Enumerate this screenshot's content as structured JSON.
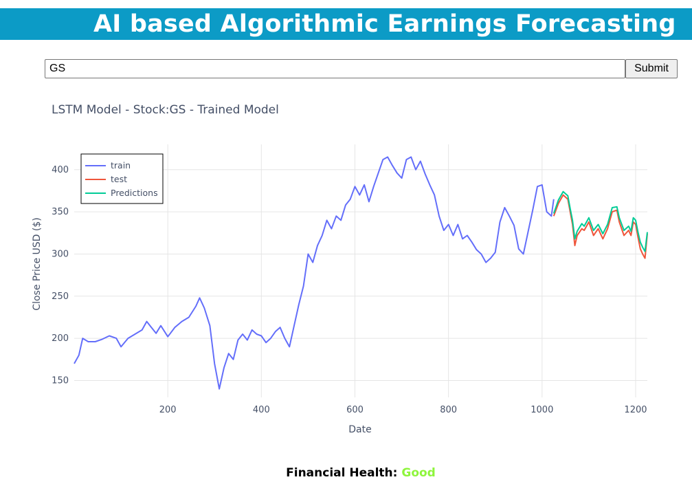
{
  "header": {
    "title": "AI based Algorithmic Earnings Forecasting"
  },
  "search": {
    "value": "GS",
    "submit_label": "Submit"
  },
  "footer": {
    "label": "Financial Health:",
    "value": "Good",
    "value_color": "#8ef53c"
  },
  "chart_data": {
    "type": "line",
    "title": "LSTM Model - Stock:GS - Trained Model",
    "xlabel": "Date",
    "ylabel": "Close Price USD ($)",
    "xlim": [
      0,
      1225
    ],
    "ylim": [
      130,
      430
    ],
    "xticks": [
      200,
      400,
      600,
      800,
      1000,
      1200
    ],
    "yticks": [
      150,
      200,
      250,
      300,
      350,
      400
    ],
    "grid": true,
    "legend_position": "top-left",
    "series": [
      {
        "name": "train",
        "color": "#636efa",
        "points": [
          [
            0,
            170
          ],
          [
            10,
            180
          ],
          [
            18,
            200
          ],
          [
            30,
            196
          ],
          [
            45,
            196
          ],
          [
            60,
            199
          ],
          [
            75,
            203
          ],
          [
            90,
            200
          ],
          [
            100,
            190
          ],
          [
            115,
            200
          ],
          [
            130,
            205
          ],
          [
            145,
            210
          ],
          [
            155,
            220
          ],
          [
            165,
            213
          ],
          [
            175,
            206
          ],
          [
            185,
            215
          ],
          [
            200,
            202
          ],
          [
            215,
            213
          ],
          [
            230,
            220
          ],
          [
            245,
            225
          ],
          [
            260,
            238
          ],
          [
            268,
            248
          ],
          [
            278,
            236
          ],
          [
            290,
            215
          ],
          [
            300,
            170
          ],
          [
            310,
            140
          ],
          [
            320,
            165
          ],
          [
            330,
            182
          ],
          [
            340,
            175
          ],
          [
            350,
            198
          ],
          [
            360,
            205
          ],
          [
            370,
            198
          ],
          [
            380,
            210
          ],
          [
            390,
            205
          ],
          [
            400,
            203
          ],
          [
            410,
            195
          ],
          [
            420,
            200
          ],
          [
            430,
            208
          ],
          [
            440,
            213
          ],
          [
            450,
            200
          ],
          [
            460,
            190
          ],
          [
            470,
            215
          ],
          [
            480,
            240
          ],
          [
            490,
            262
          ],
          [
            500,
            300
          ],
          [
            510,
            290
          ],
          [
            520,
            310
          ],
          [
            530,
            322
          ],
          [
            540,
            340
          ],
          [
            550,
            330
          ],
          [
            560,
            345
          ],
          [
            570,
            340
          ],
          [
            580,
            358
          ],
          [
            590,
            365
          ],
          [
            600,
            380
          ],
          [
            610,
            370
          ],
          [
            620,
            382
          ],
          [
            630,
            362
          ],
          [
            640,
            380
          ],
          [
            650,
            396
          ],
          [
            660,
            412
          ],
          [
            670,
            415
          ],
          [
            680,
            405
          ],
          [
            690,
            396
          ],
          [
            700,
            390
          ],
          [
            710,
            412
          ],
          [
            720,
            415
          ],
          [
            730,
            400
          ],
          [
            740,
            410
          ],
          [
            750,
            395
          ],
          [
            760,
            382
          ],
          [
            770,
            370
          ],
          [
            780,
            345
          ],
          [
            790,
            328
          ],
          [
            800,
            335
          ],
          [
            810,
            322
          ],
          [
            820,
            335
          ],
          [
            830,
            318
          ],
          [
            840,
            322
          ],
          [
            850,
            314
          ],
          [
            860,
            305
          ],
          [
            870,
            300
          ],
          [
            880,
            290
          ],
          [
            890,
            295
          ],
          [
            900,
            302
          ],
          [
            910,
            338
          ],
          [
            920,
            355
          ],
          [
            930,
            345
          ],
          [
            940,
            334
          ],
          [
            950,
            306
          ],
          [
            960,
            300
          ],
          [
            970,
            326
          ],
          [
            980,
            352
          ],
          [
            990,
            380
          ],
          [
            1000,
            382
          ],
          [
            1010,
            350
          ],
          [
            1020,
            345
          ],
          [
            1025,
            365
          ]
        ]
      },
      {
        "name": "test",
        "color": "#ef553b",
        "points": [
          [
            1025,
            345
          ],
          [
            1035,
            360
          ],
          [
            1045,
            370
          ],
          [
            1055,
            365
          ],
          [
            1060,
            350
          ],
          [
            1065,
            335
          ],
          [
            1070,
            310
          ],
          [
            1075,
            322
          ],
          [
            1085,
            330
          ],
          [
            1090,
            328
          ],
          [
            1100,
            338
          ],
          [
            1110,
            322
          ],
          [
            1120,
            330
          ],
          [
            1130,
            318
          ],
          [
            1140,
            330
          ],
          [
            1150,
            350
          ],
          [
            1160,
            352
          ],
          [
            1165,
            338
          ],
          [
            1175,
            322
          ],
          [
            1185,
            328
          ],
          [
            1190,
            322
          ],
          [
            1195,
            338
          ],
          [
            1200,
            335
          ],
          [
            1205,
            320
          ],
          [
            1210,
            306
          ],
          [
            1215,
            300
          ],
          [
            1220,
            295
          ],
          [
            1225,
            324
          ]
        ]
      },
      {
        "name": "Predictions",
        "color": "#00cc96",
        "points": [
          [
            1025,
            348
          ],
          [
            1035,
            364
          ],
          [
            1045,
            374
          ],
          [
            1055,
            369
          ],
          [
            1060,
            354
          ],
          [
            1065,
            340
          ],
          [
            1070,
            318
          ],
          [
            1075,
            327
          ],
          [
            1085,
            336
          ],
          [
            1090,
            333
          ],
          [
            1100,
            343
          ],
          [
            1110,
            328
          ],
          [
            1120,
            335
          ],
          [
            1130,
            324
          ],
          [
            1140,
            335
          ],
          [
            1150,
            355
          ],
          [
            1160,
            356
          ],
          [
            1165,
            343
          ],
          [
            1175,
            328
          ],
          [
            1185,
            333
          ],
          [
            1190,
            327
          ],
          [
            1195,
            343
          ],
          [
            1200,
            340
          ],
          [
            1205,
            326
          ],
          [
            1210,
            314
          ],
          [
            1215,
            308
          ],
          [
            1220,
            303
          ],
          [
            1225,
            326
          ]
        ]
      }
    ]
  }
}
